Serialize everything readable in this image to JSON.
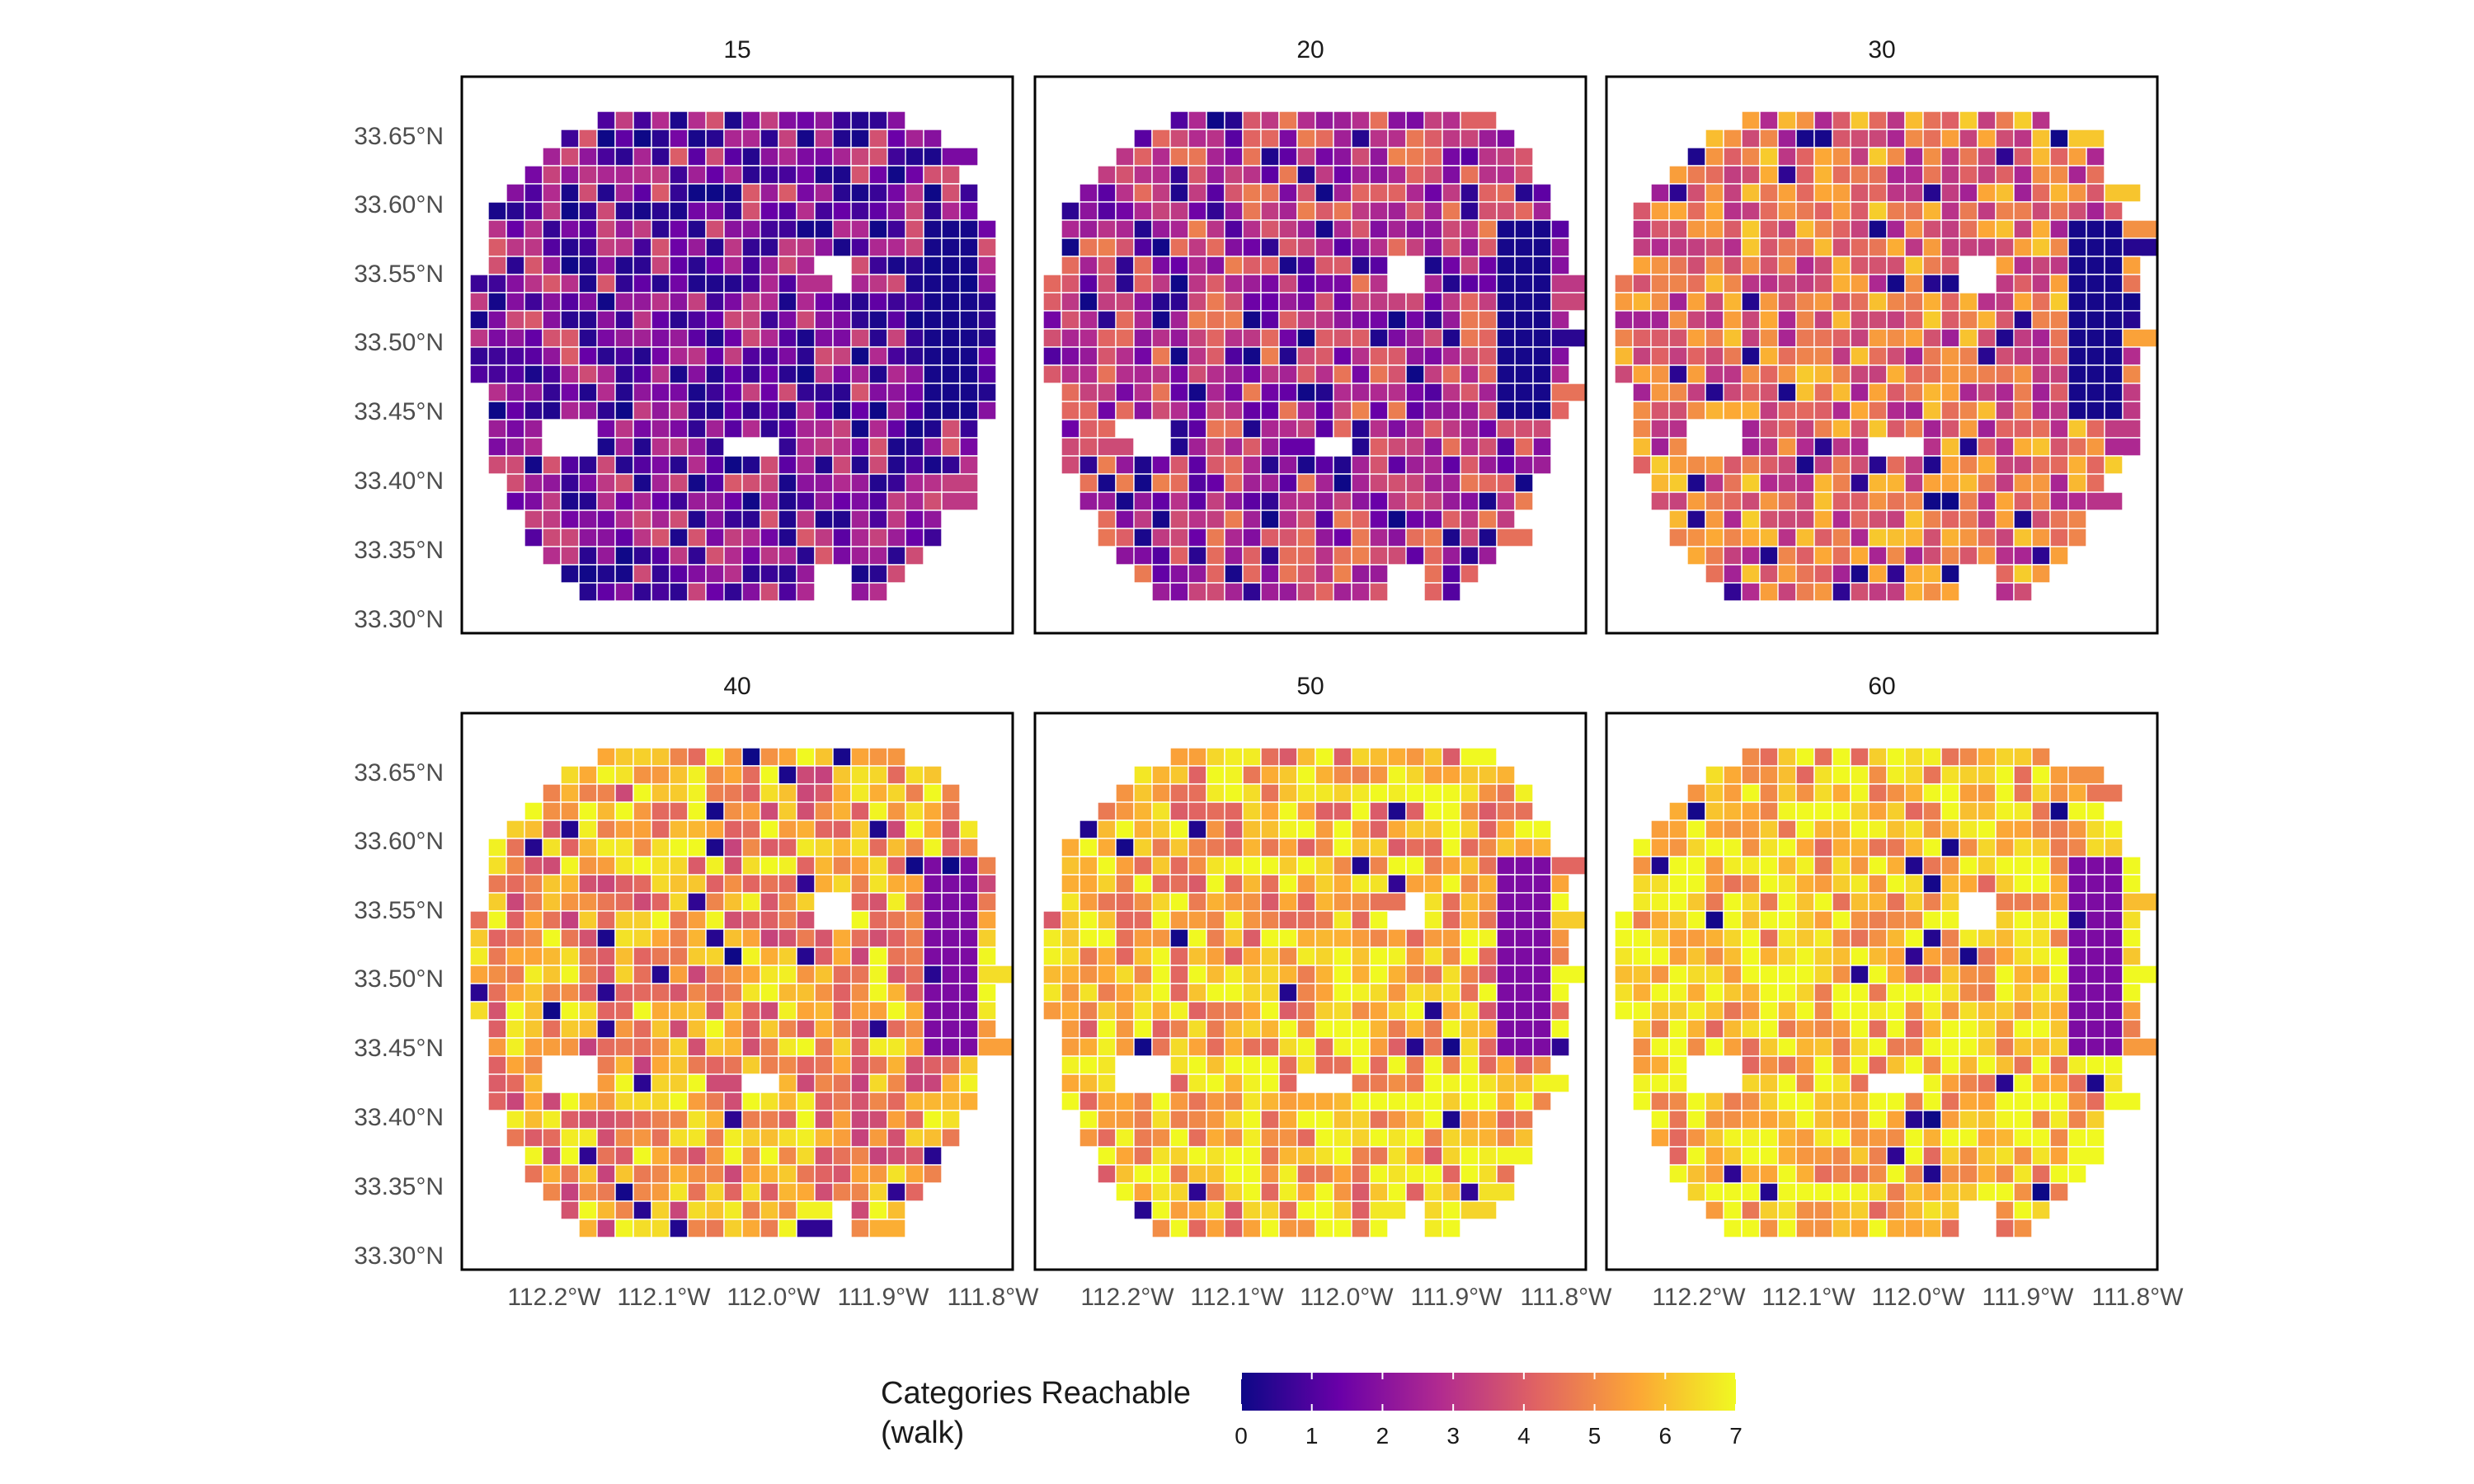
{
  "chart_data": {
    "type": "choropleth-facets",
    "facets": [
      {
        "label": "15",
        "level": 0.3,
        "low_share": 0.35
      },
      {
        "label": "20",
        "level": 0.42,
        "low_share": 0.25
      },
      {
        "label": "30",
        "level": 0.62,
        "low_share": 0.15
      },
      {
        "label": "40",
        "level": 0.75,
        "low_share": 0.1
      },
      {
        "label": "50",
        "level": 0.84,
        "low_share": 0.06
      },
      {
        "label": "60",
        "level": 0.88,
        "low_share": 0.05
      }
    ],
    "y_ticks": [
      "33.65°N",
      "33.60°N",
      "33.55°N",
      "33.50°N",
      "33.45°N",
      "33.40°N",
      "33.35°N",
      "33.30°N"
    ],
    "x_ticks": [
      "112.2°W",
      "112.1°W",
      "112.0°W",
      "111.9°W",
      "111.8°W"
    ],
    "legend": {
      "title_line1": "Categories Reachable",
      "title_line2": "(walk)",
      "ticks": [
        "0",
        "1",
        "2",
        "3",
        "4",
        "5",
        "6",
        "7"
      ],
      "min": 0,
      "max": 7
    },
    "colormap": [
      "#0d0887",
      "#6a00a8",
      "#b12a90",
      "#e16462",
      "#fca636",
      "#f0f921"
    ],
    "boundary_color": "#ffffff",
    "panel_border_color": "#000000"
  }
}
